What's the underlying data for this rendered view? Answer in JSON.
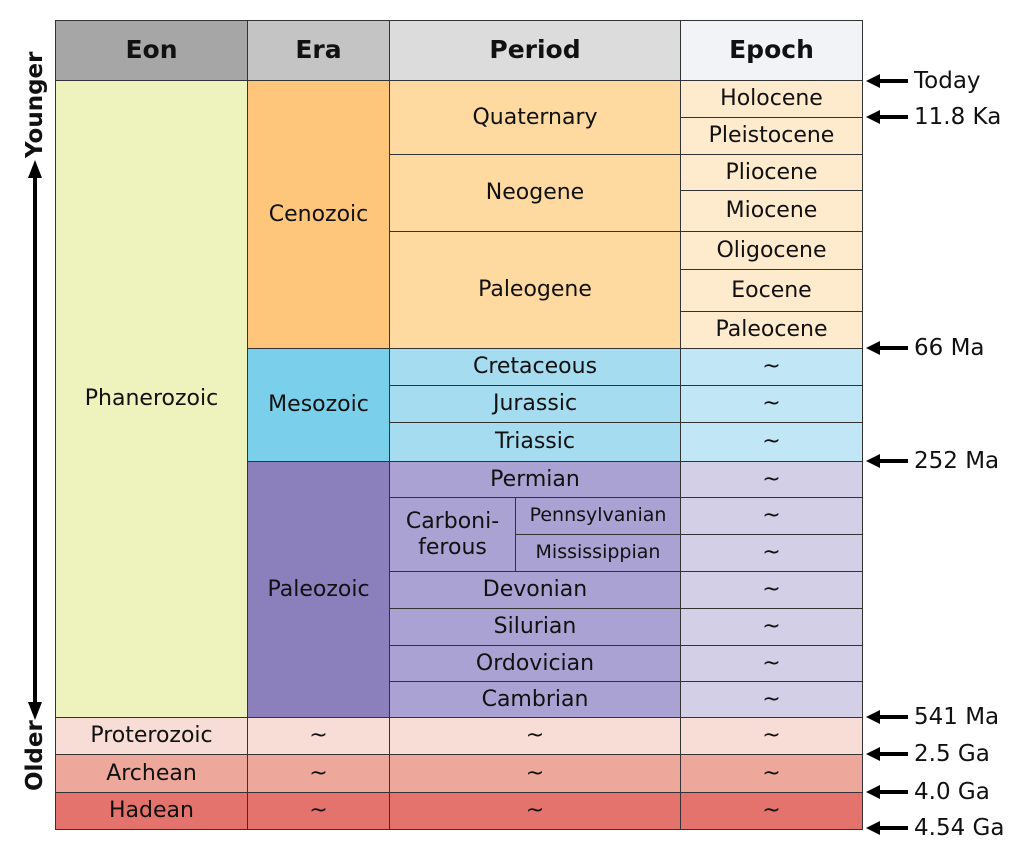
{
  "headers": {
    "eon": "Eon",
    "era": "Era",
    "period": "Period",
    "epoch": "Epoch"
  },
  "header_colors": {
    "eon": "#a6a6a6",
    "era": "#c4c4c4",
    "period": "#dcdcdc",
    "epoch": "#f2f3f7"
  },
  "axis": {
    "younger": "Younger",
    "older": "Older"
  },
  "eons": [
    {
      "name": "Phanerozoic",
      "color": "#eef3bd"
    },
    {
      "name": "Proterozoic",
      "color": "#f8ddd6",
      "era": "~",
      "period": "~",
      "epoch": "~"
    },
    {
      "name": "Archean",
      "color": "#eda89b",
      "era": "~",
      "period": "~",
      "epoch": "~"
    },
    {
      "name": "Hadean",
      "color": "#e3736c",
      "era": "~",
      "period": "~",
      "epoch": "~"
    }
  ],
  "eras": [
    {
      "name": "Cenozoic",
      "color": "#fdc67a",
      "period_color": "#fed9a0",
      "epoch_color": "#feeacc"
    },
    {
      "name": "Mesozoic",
      "color": "#7ad0ea",
      "period_color": "#a5dcf0",
      "epoch_color": "#c1e6f5"
    },
    {
      "name": "Paleozoic",
      "color": "#8c80bc",
      "period_color": "#aaa2d2",
      "epoch_color": "#d2cfe7"
    }
  ],
  "periods": [
    {
      "name": "Quaternary"
    },
    {
      "name": "Neogene"
    },
    {
      "name": "Paleogene"
    },
    {
      "name": "Cretaceous"
    },
    {
      "name": "Jurassic"
    },
    {
      "name": "Triassic"
    },
    {
      "name": "Permian"
    },
    {
      "name": "Carboni-\nferous",
      "subperiods": [
        "Pennsylvanian",
        "Mississippian"
      ]
    },
    {
      "name": "Devonian"
    },
    {
      "name": "Silurian"
    },
    {
      "name": "Ordovician"
    },
    {
      "name": "Cambrian"
    }
  ],
  "epochs": [
    "Holocene",
    "Pleistocene",
    "Pliocene",
    "Miocene",
    "Oligocene",
    "Eocene",
    "Paleocene",
    "~",
    "~",
    "~",
    "~",
    "~",
    "~",
    "~",
    "~",
    "~",
    "~"
  ],
  "boundaries": [
    "Today",
    "11.8 Ka",
    "66 Ma",
    "252 Ma",
    "541 Ma",
    "2.5 Ga",
    "4.0 Ga",
    "4.54 Ga"
  ]
}
